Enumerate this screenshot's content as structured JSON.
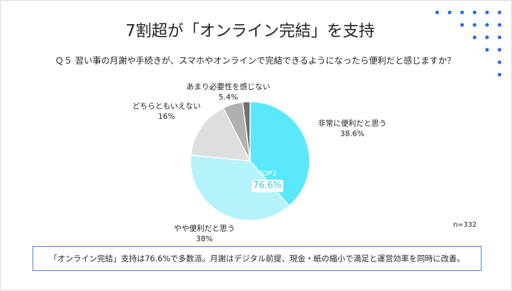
{
  "header": {
    "title": "7割超が「オンライン完結」を支持",
    "question": "Ｑ５ 習い事の月謝や手続きが、スマホやオンラインで完結できるようになったら便利だと感じますか？"
  },
  "chart_data": {
    "type": "pie",
    "categories": [
      "非常に便利だと思う",
      "やや便利だと思う",
      "どちらともいえない",
      "あまり必要性を感じない"
    ],
    "values": [
      38.6,
      38,
      16,
      5.4
    ],
    "labels": [
      "38.6%",
      "38%",
      "16%",
      "5.4%"
    ],
    "colors": [
      "#5ae8fc",
      "#b4f2fc",
      "#dedede",
      "#b0b0b0",
      "#707070"
    ],
    "badge": {
      "label": "TOP2",
      "value": "76.6%"
    }
  },
  "sample_size": "n=332",
  "summary": "「オンライン完結」支持は76.6%で多数派。月謝はデジタル前提、現金・紙の縮小で満足と運営効率を同時に改善。",
  "decor": {
    "dot_color": "#1f6ae8"
  }
}
